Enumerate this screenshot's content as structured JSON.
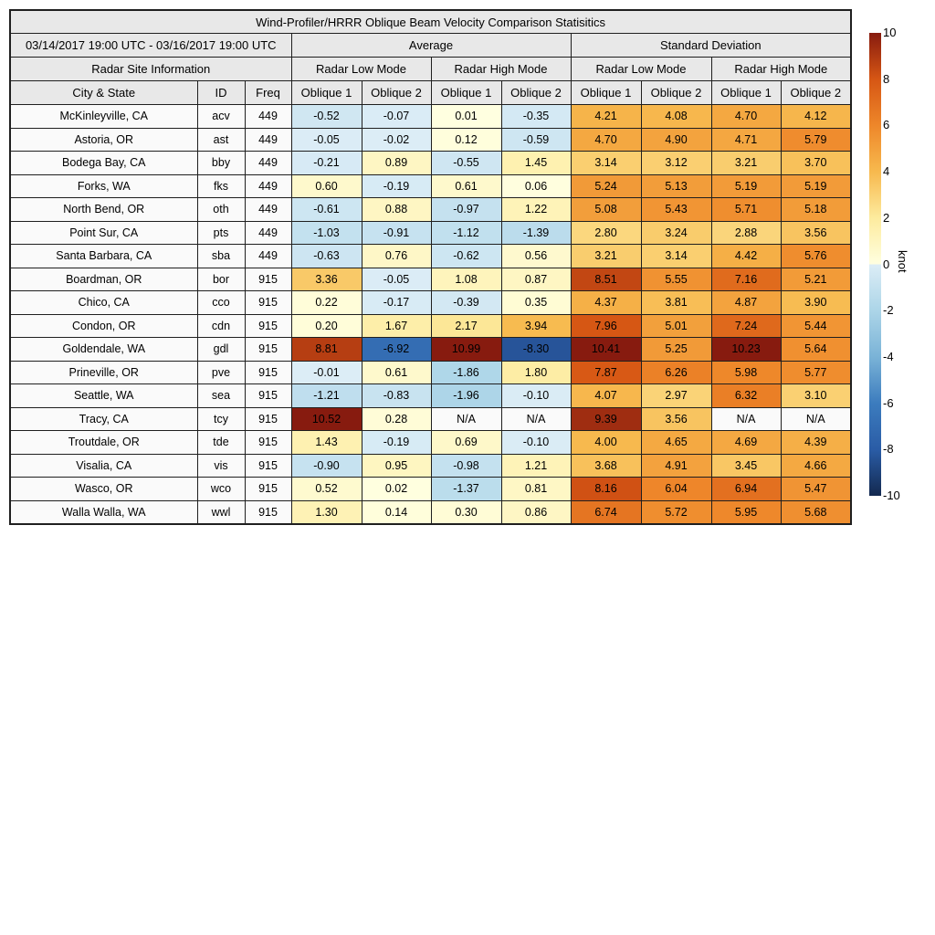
{
  "chart_data": {
    "type": "table",
    "title": "Wind-Profiler/HRRR Oblique Beam Velocity Comparison Statisitics",
    "date_range": "03/14/2017 19:00 UTC - 03/16/2017 19:00 UTC",
    "unit": "knot",
    "na_label": "N/A",
    "value_columns": [
      "Average / Radar Low Mode / Oblique 1",
      "Average / Radar Low Mode / Oblique 2",
      "Average / Radar High Mode / Oblique 1",
      "Average / Radar High Mode / Oblique 2",
      "Standard Deviation / Radar Low Mode / Oblique 1",
      "Standard Deviation / Radar Low Mode / Oblique 2",
      "Standard Deviation / Radar High Mode / Oblique 1",
      "Standard Deviation / Radar High Mode / Oblique 2"
    ],
    "rows": [
      {
        "city": "McKinleyville, CA",
        "id": "acv",
        "freq": "449",
        "values": [
          -0.52,
          -0.07,
          0.01,
          -0.35,
          4.21,
          4.08,
          4.7,
          4.12
        ]
      },
      {
        "city": "Astoria, OR",
        "id": "ast",
        "freq": "449",
        "values": [
          -0.05,
          -0.02,
          0.12,
          -0.59,
          4.7,
          4.9,
          4.71,
          5.79
        ]
      },
      {
        "city": "Bodega Bay, CA",
        "id": "bby",
        "freq": "449",
        "values": [
          -0.21,
          0.89,
          -0.55,
          1.45,
          3.14,
          3.12,
          3.21,
          3.7
        ]
      },
      {
        "city": "Forks, WA",
        "id": "fks",
        "freq": "449",
        "values": [
          0.6,
          -0.19,
          0.61,
          0.06,
          5.24,
          5.13,
          5.19,
          5.19
        ]
      },
      {
        "city": "North Bend, OR",
        "id": "oth",
        "freq": "449",
        "values": [
          -0.61,
          0.88,
          -0.97,
          1.22,
          5.08,
          5.43,
          5.71,
          5.18
        ]
      },
      {
        "city": "Point Sur, CA",
        "id": "pts",
        "freq": "449",
        "values": [
          -1.03,
          -0.91,
          -1.12,
          -1.39,
          2.8,
          3.24,
          2.88,
          3.56
        ]
      },
      {
        "city": "Santa Barbara, CA",
        "id": "sba",
        "freq": "449",
        "values": [
          -0.63,
          0.76,
          -0.62,
          0.56,
          3.21,
          3.14,
          4.42,
          5.76
        ]
      },
      {
        "city": "Boardman, OR",
        "id": "bor",
        "freq": "915",
        "values": [
          3.36,
          -0.05,
          1.08,
          0.87,
          8.51,
          5.55,
          7.16,
          5.21
        ]
      },
      {
        "city": "Chico, CA",
        "id": "cco",
        "freq": "915",
        "values": [
          0.22,
          -0.17,
          -0.39,
          0.35,
          4.37,
          3.81,
          4.87,
          3.9
        ]
      },
      {
        "city": "Condon, OR",
        "id": "cdn",
        "freq": "915",
        "values": [
          0.2,
          1.67,
          2.17,
          3.94,
          7.96,
          5.01,
          7.24,
          5.44
        ]
      },
      {
        "city": "Goldendale, WA",
        "id": "gdl",
        "freq": "915",
        "values": [
          8.81,
          -6.92,
          10.99,
          -8.3,
          10.41,
          5.25,
          10.23,
          5.64
        ]
      },
      {
        "city": "Prineville, OR",
        "id": "pve",
        "freq": "915",
        "values": [
          -0.01,
          0.61,
          -1.86,
          1.8,
          7.87,
          6.26,
          5.98,
          5.77
        ]
      },
      {
        "city": "Seattle, WA",
        "id": "sea",
        "freq": "915",
        "values": [
          -1.21,
          -0.83,
          -1.96,
          -0.1,
          4.07,
          2.97,
          6.32,
          3.1
        ]
      },
      {
        "city": "Tracy, CA",
        "id": "tcy",
        "freq": "915",
        "values": [
          10.52,
          0.28,
          null,
          null,
          9.39,
          3.56,
          null,
          null
        ]
      },
      {
        "city": "Troutdale, OR",
        "id": "tde",
        "freq": "915",
        "values": [
          1.43,
          -0.19,
          0.69,
          -0.1,
          4.0,
          4.65,
          4.69,
          4.39
        ]
      },
      {
        "city": "Visalia, CA",
        "id": "vis",
        "freq": "915",
        "values": [
          -0.9,
          0.95,
          -0.98,
          1.21,
          3.68,
          4.91,
          3.45,
          4.66
        ]
      },
      {
        "city": "Wasco, OR",
        "id": "wco",
        "freq": "915",
        "values": [
          0.52,
          0.02,
          -1.37,
          0.81,
          8.16,
          6.04,
          6.94,
          5.47
        ]
      },
      {
        "city": "Walla Walla, WA",
        "id": "wwl",
        "freq": "915",
        "values": [
          1.3,
          0.14,
          0.3,
          0.86,
          6.74,
          5.72,
          5.95,
          5.68
        ]
      }
    ]
  },
  "header": {
    "date_range": "03/14/2017 19:00 UTC - 03/16/2017 19:00 UTC",
    "site_info_label": "Radar Site Information",
    "group_average": "Average",
    "group_std": "Standard Deviation",
    "mode_low": "Radar Low Mode",
    "mode_high": "Radar High Mode",
    "col_city": "City & State",
    "col_id": "ID",
    "col_freq": "Freq",
    "col_oblique1": "Oblique 1",
    "col_oblique2": "Oblique 2"
  },
  "colorbar": {
    "label": "knot",
    "min": -10,
    "max": 10,
    "ticks": [
      10,
      8,
      6,
      4,
      2,
      0,
      -2,
      -4,
      -6,
      -8,
      -10
    ]
  },
  "colormap": {
    "na_color": "#fafafa",
    "positive": [
      [
        0,
        "#ffffe0"
      ],
      [
        2,
        "#fdeb9e"
      ],
      [
        4,
        "#f7b94e"
      ],
      [
        6,
        "#ee872a"
      ],
      [
        8,
        "#d65614"
      ],
      [
        10,
        "#871b0f"
      ]
    ],
    "negative": [
      [
        -10,
        "#13294f"
      ],
      [
        -8,
        "#2a5ca6"
      ],
      [
        -6,
        "#3c7cbe"
      ],
      [
        -4,
        "#7ab3d7"
      ],
      [
        -2,
        "#acd5e8"
      ],
      [
        0,
        "#dcedf6"
      ]
    ]
  }
}
